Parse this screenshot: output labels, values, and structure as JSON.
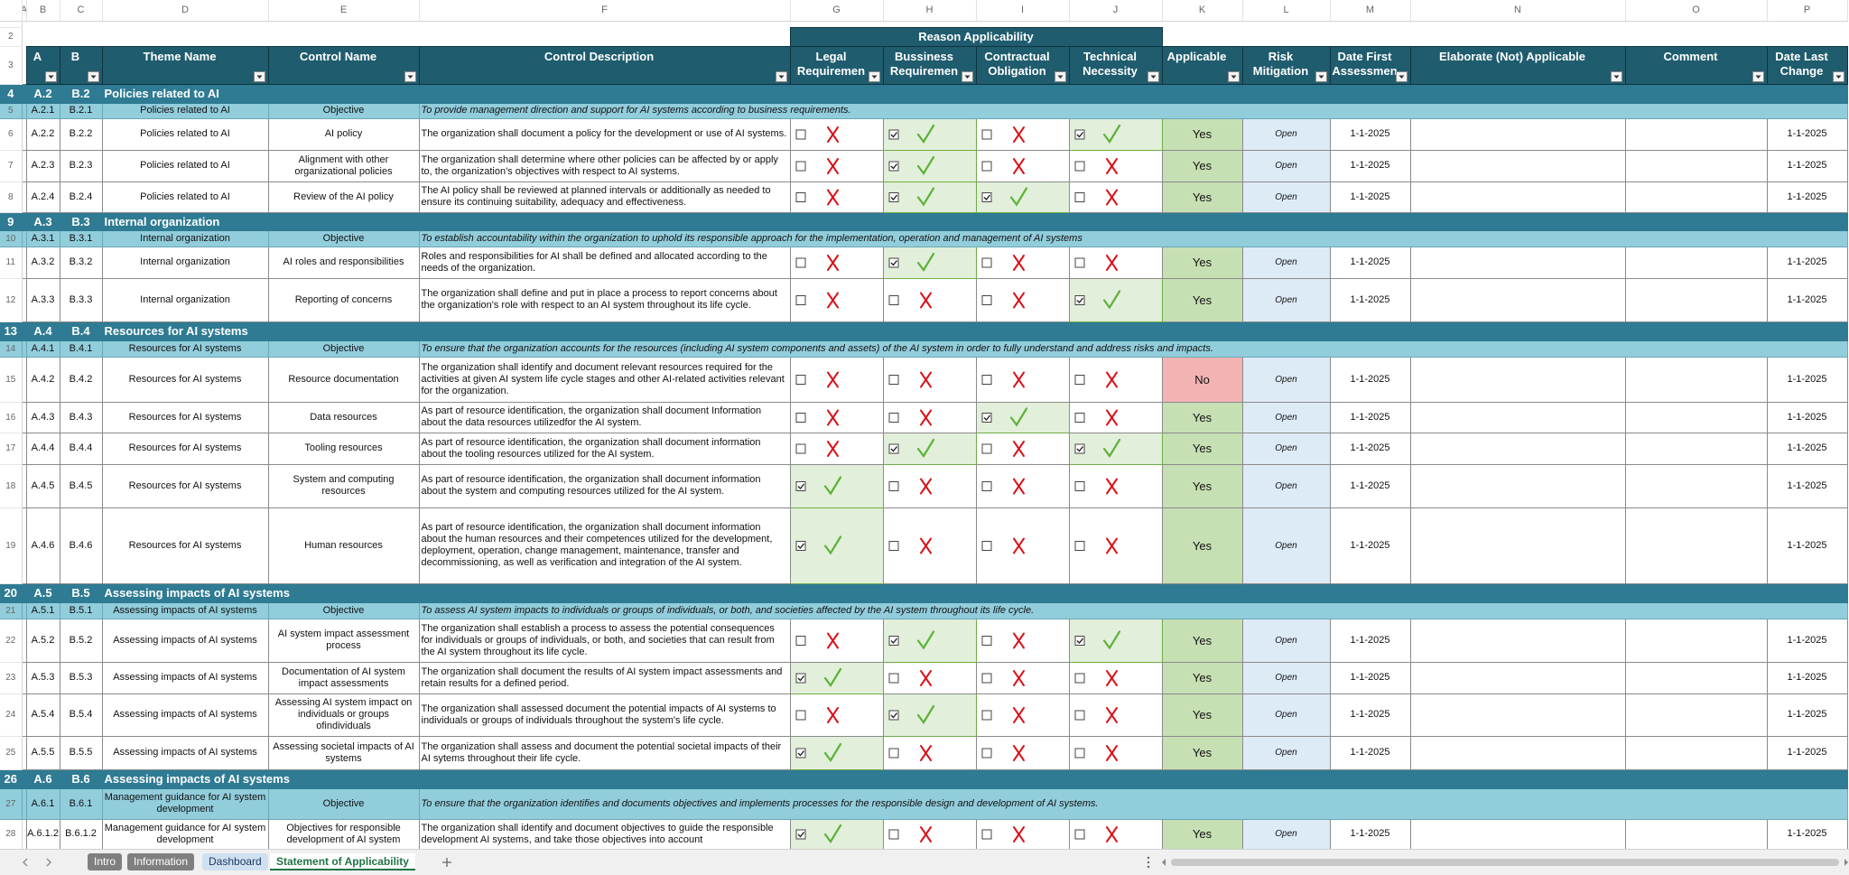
{
  "columns": [
    "A",
    "B",
    "C",
    "D",
    "E",
    "F",
    "G",
    "H",
    "I",
    "J",
    "K",
    "L",
    "M",
    "N",
    "O",
    "P"
  ],
  "row_numbers": [
    2,
    3,
    4,
    5,
    6,
    7,
    8,
    9,
    10,
    11,
    12,
    13,
    14,
    15,
    16,
    17,
    18,
    19,
    20,
    21,
    22,
    23,
    24,
    25,
    26,
    27,
    28
  ],
  "header": {
    "group": "Reason Applicability",
    "cols": [
      "A",
      "B",
      "Theme Name",
      "Control Name",
      "Control Description",
      "Legal Requiremen",
      "Bussiness Requiremen",
      "Contractual Obligation",
      "Technical Necessity",
      "Applicable",
      "Risk Mitigation",
      "Date First Assessmen",
      "Elaborate (Not) Applicable",
      "Comment",
      "Date Last Change"
    ]
  },
  "rows": [
    {
      "kind": "section",
      "ids": [
        "A.2",
        "B.2"
      ],
      "title": "Policies related to AI"
    },
    {
      "kind": "objective",
      "ids": [
        "A.2.1",
        "B.2.1"
      ],
      "theme": "Policies related to AI",
      "control": "Objective",
      "description": "To provide management direction and support for AI systems according to business requirements."
    },
    {
      "kind": "control",
      "ids": [
        "A.2.2",
        "B.2.2"
      ],
      "theme": "Policies related to AI",
      "control": "AI policy",
      "description": "The organization shall document a policy for the development or use of AI systems.",
      "reasons": [
        false,
        true,
        false,
        true
      ],
      "applicable": "Yes",
      "applicable_fill": "#c6e0b4",
      "risk": "Open",
      "date_first": "1-1-2025",
      "date_last": "1-1-2025"
    },
    {
      "kind": "control",
      "ids": [
        "A.2.3",
        "B.2.3"
      ],
      "theme": "Policies related to AI",
      "control": "Alignment with other organizational policies",
      "description": "The organization shall determine where other policies can be affected by or apply to, the organization's objectives with respect to AI systems.",
      "reasons": [
        false,
        true,
        false,
        false
      ],
      "applicable": "Yes",
      "applicable_fill": "#c6e0b4",
      "risk": "Open",
      "date_first": "1-1-2025",
      "date_last": "1-1-2025"
    },
    {
      "kind": "control",
      "ids": [
        "A.2.4",
        "B.2.4"
      ],
      "theme": "Policies related to AI",
      "control": "Review of the AI policy",
      "description": "The AI policy shall be reviewed at planned intervals or additionally as needed to ensure its continuing suitability, adequacy and effectiveness.",
      "reasons": [
        false,
        true,
        true,
        false
      ],
      "applicable": "Yes",
      "applicable_fill": "#c6e0b4",
      "risk": "Open",
      "date_first": "1-1-2025",
      "date_last": "1-1-2025"
    },
    {
      "kind": "section",
      "ids": [
        "A.3",
        "B.3"
      ],
      "title": "Internal organization"
    },
    {
      "kind": "objective",
      "ids": [
        "A.3.1",
        "B.3.1"
      ],
      "theme": "Internal organization",
      "control": "Objective",
      "description": "To establish accountability within the organization to uphold its responsible approach for the implementation, operation and management of AI systems"
    },
    {
      "kind": "control",
      "ids": [
        "A.3.2",
        "B.3.2"
      ],
      "theme": "Internal organization",
      "control": "AI roles and responsibilities",
      "description": "Roles and responsibilities for AI shall be defined and allocated according to the needs of the organization.",
      "reasons": [
        false,
        true,
        false,
        false
      ],
      "applicable": "Yes",
      "applicable_fill": "#c6e0b4",
      "risk": "Open",
      "date_first": "1-1-2025",
      "date_last": "1-1-2025"
    },
    {
      "kind": "control",
      "ids": [
        "A.3.3",
        "B.3.3"
      ],
      "theme": "Internal organization",
      "control": "Reporting of concerns",
      "description": "The organization shall define and put in place a process to report concerns about the organization's role with respect to an AI system throughout its life cycle.",
      "reasons": [
        false,
        false,
        false,
        true
      ],
      "applicable": "Yes",
      "applicable_fill": "#c6e0b4",
      "risk": "Open",
      "date_first": "1-1-2025",
      "date_last": "1-1-2025"
    },
    {
      "kind": "section",
      "ids": [
        "A.4",
        "B.4"
      ],
      "title": "Resources for AI systems"
    },
    {
      "kind": "objective",
      "ids": [
        "A.4.1",
        "B.4.1"
      ],
      "theme": "Resources for AI systems",
      "control": "Objective",
      "description": "To ensure that the organization accounts for the resources (including AI system components and assets) of the AI system in order to fully understand and address risks and impacts."
    },
    {
      "kind": "control",
      "ids": [
        "A.4.2",
        "B.4.2"
      ],
      "theme": "Resources for AI systems",
      "control": "Resource documentation",
      "description": "The organization shall identify and document relevant resources required for the activities at given AI system life cycle stages and other AI-related activities relevant for the organization.",
      "reasons": [
        false,
        false,
        false,
        false
      ],
      "applicable": "No",
      "applicable_fill": "#f4b3b3",
      "risk": "Open",
      "date_first": "1-1-2025",
      "date_last": "1-1-2025"
    },
    {
      "kind": "control",
      "ids": [
        "A.4.3",
        "B.4.3"
      ],
      "theme": "Resources for AI systems",
      "control": "Data resources",
      "description": "As part of resource identification, the organization shall document Information about the data resources utilizedfor the AI system.",
      "reasons": [
        false,
        false,
        true,
        false
      ],
      "applicable": "Yes",
      "applicable_fill": "#c6e0b4",
      "risk": "Open",
      "date_first": "1-1-2025",
      "date_last": "1-1-2025"
    },
    {
      "kind": "control",
      "ids": [
        "A.4.4",
        "B.4.4"
      ],
      "theme": "Resources for AI systems",
      "control": "Tooling resources",
      "description": "As part of resource identification, the organization shall document information about the tooling resources utilized for the AI system.",
      "reasons": [
        false,
        true,
        false,
        true
      ],
      "applicable": "Yes",
      "applicable_fill": "#c6e0b4",
      "risk": "Open",
      "date_first": "1-1-2025",
      "date_last": "1-1-2025"
    },
    {
      "kind": "control",
      "ids": [
        "A.4.5",
        "B.4.5"
      ],
      "theme": "Resources for AI systems",
      "control": "System and computing resources",
      "description": "As part of resource identification, the organization shall document information about the system and computing resources utilized for the AI system.",
      "reasons": [
        true,
        false,
        false,
        false
      ],
      "applicable": "Yes",
      "applicable_fill": "#c6e0b4",
      "risk": "Open",
      "date_first": "1-1-2025",
      "date_last": "1-1-2025"
    },
    {
      "kind": "control",
      "ids": [
        "A.4.6",
        "B.4.6"
      ],
      "theme": "Resources for AI systems",
      "control": "Human resources",
      "description": "As part of resource identification, the organization shall document information about the human resources and their competences utilized for the development, deployment, operation, change management, maintenance, transfer and decommissioning, as well as verification and integration of the AI system.",
      "reasons": [
        true,
        false,
        false,
        false
      ],
      "applicable": "Yes",
      "applicable_fill": "#c6e0b4",
      "risk": "Open",
      "date_first": "1-1-2025",
      "date_last": "1-1-2025"
    },
    {
      "kind": "section",
      "ids": [
        "A.5",
        "B.5"
      ],
      "title": "Assessing impacts of AI systems"
    },
    {
      "kind": "objective",
      "ids": [
        "A.5.1",
        "B.5.1"
      ],
      "theme": "Assessing impacts of AI systems",
      "control": "Objective",
      "description": "To assess AI system impacts to individuals or groups of individuals, or both, and societies affected by the AI system throughout its life cycle."
    },
    {
      "kind": "control",
      "ids": [
        "A.5.2",
        "B.5.2"
      ],
      "theme": "Assessing impacts of AI systems",
      "control": "AI system impact assessment process",
      "description": "The organization shall establish a process to assess the potential consequences for individuals or groups of individuals, or both, and societies that can result from the AI system throughout its life cycle.",
      "reasons": [
        false,
        true,
        false,
        true
      ],
      "applicable": "Yes",
      "applicable_fill": "#c6e0b4",
      "risk": "Open",
      "date_first": "1-1-2025",
      "date_last": "1-1-2025"
    },
    {
      "kind": "control",
      "ids": [
        "A.5.3",
        "B.5.3"
      ],
      "theme": "Assessing impacts of AI systems",
      "control": "Documentation of AI system impact assessments",
      "description": "The organization shall document the results of AI system impact assessments and retain results for a defined period.",
      "reasons": [
        true,
        false,
        false,
        false
      ],
      "applicable": "Yes",
      "applicable_fill": "#c6e0b4",
      "risk": "Open",
      "date_first": "1-1-2025",
      "date_last": "1-1-2025"
    },
    {
      "kind": "control",
      "ids": [
        "A.5.4",
        "B.5.4"
      ],
      "theme": "Assessing impacts of AI systems",
      "control": "Assessing AI system impact on individuals or groups ofindividuals",
      "description": "The organization shall assessed document the potential impacts of AI systems to individuals or groups of individuals throughout the system's life cycle.",
      "reasons": [
        false,
        true,
        false,
        false
      ],
      "applicable": "Yes",
      "applicable_fill": "#c6e0b4",
      "risk": "Open",
      "date_first": "1-1-2025",
      "date_last": "1-1-2025"
    },
    {
      "kind": "control",
      "ids": [
        "A.5.5",
        "B.5.5"
      ],
      "theme": "Assessing impacts of AI systems",
      "control": "Assessing societal impacts of AI systems",
      "description": "The organization shall assess and document the potential societal impacts of their AI sytems throughout their life cycle.",
      "reasons": [
        true,
        false,
        false,
        false
      ],
      "applicable": "Yes",
      "applicable_fill": "#c6e0b4",
      "risk": "Open",
      "date_first": "1-1-2025",
      "date_last": "1-1-2025"
    },
    {
      "kind": "section",
      "ids": [
        "A.6",
        "B.6"
      ],
      "title": "Assessing impacts of AI systems"
    },
    {
      "kind": "objective",
      "ids": [
        "A.6.1",
        "B.6.1"
      ],
      "theme": "Management guidance for AI system development",
      "control": "Objective",
      "description": "To ensure that the organization identifies  and documents objectives and implements processes for the responsible design and development of AI systems."
    },
    {
      "kind": "control",
      "ids": [
        "A.6.1.2",
        "B.6.1.2"
      ],
      "theme": "Management guidance for AI system development",
      "control": "Objectives for responsible development of AI system",
      "description": "The organization shall identify and document objectives to guide the responsible development AI systems, and take those objectives into account",
      "reasons": [
        true,
        false,
        false,
        false
      ],
      "applicable": "Yes",
      "applicable_fill": "#c6e0b4",
      "risk": "Open",
      "date_first": "1-1-2025",
      "date_last": "1-1-2025"
    }
  ],
  "tabs": [
    "Intro",
    "Information",
    "Dashboard",
    "Statement of Applicability"
  ]
}
